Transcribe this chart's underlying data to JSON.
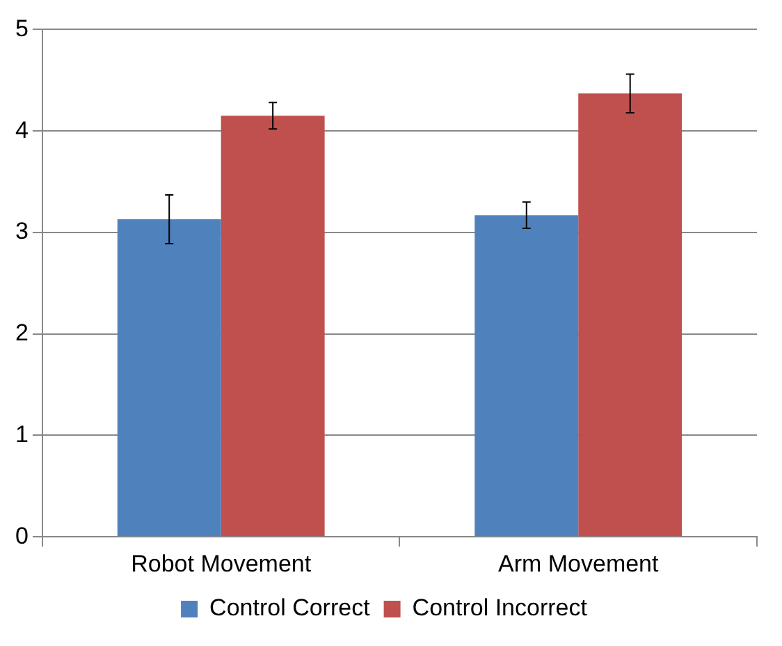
{
  "chart_data": {
    "type": "bar",
    "categories": [
      "Robot Movement",
      "Arm Movement"
    ],
    "series": [
      {
        "name": "Control Correct",
        "color": "#4f81bd",
        "values": [
          3.13,
          3.17
        ],
        "errors": [
          0.24,
          0.13
        ]
      },
      {
        "name": "Control Incorrect",
        "color": "#c0504d",
        "values": [
          4.15,
          4.37
        ],
        "errors": [
          0.13,
          0.19
        ]
      }
    ],
    "ylim": [
      0,
      5
    ],
    "yticks": [
      0,
      1,
      2,
      3,
      4,
      5
    ],
    "grid": "y",
    "legend": "bottom"
  }
}
